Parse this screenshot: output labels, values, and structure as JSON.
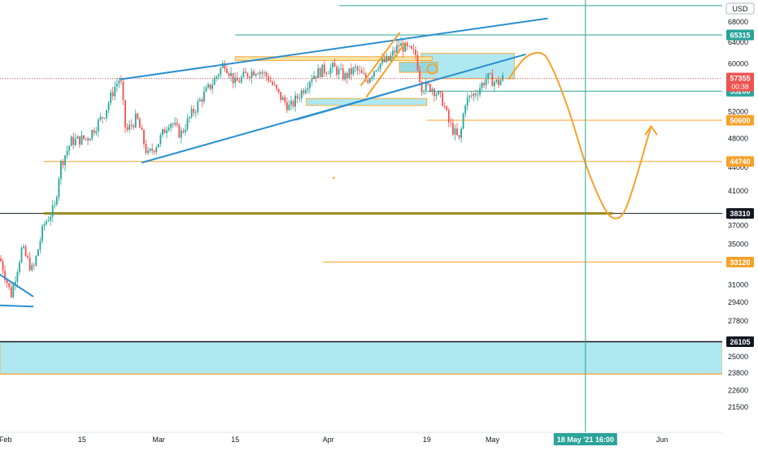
{
  "app": {
    "currency_label": "USD"
  },
  "chart_data": {
    "type": "candlestick",
    "y_scale": "log",
    "ylim": [
      20500,
      72500
    ],
    "y_ticks": [
      68000,
      64000,
      60000,
      56000,
      52000,
      48000,
      44000,
      41000,
      38000,
      37000,
      35000,
      33000,
      31000,
      29400,
      27800,
      25000,
      23800,
      22600,
      21500
    ],
    "x_range": [
      "2021-01-31",
      "2021-06-12"
    ],
    "x_ticks": [
      {
        "label": "Feb",
        "date": "2021-02-01"
      },
      {
        "label": "15",
        "date": "2021-02-15"
      },
      {
        "label": "Mar",
        "date": "2021-03-01"
      },
      {
        "label": "15",
        "date": "2021-03-15"
      },
      {
        "label": "Apr",
        "date": "2021-04-01"
      },
      {
        "label": "19",
        "date": "2021-04-19"
      },
      {
        "label": "May",
        "date": "2021-05-01"
      },
      {
        "label": "Jun",
        "date": "2021-06-01"
      }
    ],
    "crosshair": {
      "date": "2021-05-18",
      "label": "18 May '21   16:00"
    },
    "last_price": {
      "value": 57355,
      "countdown": "00:38"
    },
    "price_labels": [
      {
        "value": 65315,
        "label": "65315",
        "style": "teal"
      },
      {
        "value": 55200,
        "label": "55200",
        "style": "teal"
      },
      {
        "value": 50600,
        "label": "50600",
        "style": "orange"
      },
      {
        "value": 44740,
        "label": "44740",
        "style": "orange"
      },
      {
        "value": 38310,
        "label": "38310",
        "style": "black"
      },
      {
        "value": 33120,
        "label": "33120",
        "style": "orange"
      },
      {
        "value": 26105,
        "label": "26105",
        "style": "black"
      }
    ],
    "h_levels": [
      {
        "value": 71300,
        "x_from": "2021-04-03",
        "color": "#2aa39a",
        "width": 1
      },
      {
        "value": 65315,
        "x_from": "2021-03-15",
        "color": "#2aa39a",
        "width": 1
      },
      {
        "value": 55200,
        "x_from": "2021-04-19",
        "color": "#2aa39a",
        "width": 1
      },
      {
        "value": 50600,
        "x_from": "2021-04-19",
        "color": "#f7a12a",
        "width": 1
      },
      {
        "value": 44740,
        "x_from": "2021-02-08",
        "color": "#f7a12a",
        "width": 1
      },
      {
        "value": 38310,
        "x_from": "2021-01-31",
        "color": "#131722",
        "width": 1
      },
      {
        "value": 38310,
        "x_from": "2021-02-08",
        "x_to": "2021-05-23",
        "color": "#9a8a1e",
        "width": 3
      },
      {
        "value": 33120,
        "x_from": "2021-03-31",
        "color": "#f7a12a",
        "width": 1
      },
      {
        "value": 26105,
        "x_from": "2021-01-31",
        "color": "#131722",
        "width": 1.5
      },
      {
        "value": 23700,
        "x_from": "2021-01-31",
        "color": "#f7a12a",
        "width": 1
      }
    ],
    "zones": [
      {
        "x_from": "2021-01-31",
        "x_to": "2021-06-12",
        "y_top": 26105,
        "y_bottom": 23700,
        "fill": "#a8e6f0",
        "stroke": "#f7a12a"
      },
      {
        "x_from": "2021-04-18",
        "x_to": "2021-05-05",
        "y_top": 61800,
        "y_bottom": 57300,
        "fill": "#a8e6f0",
        "stroke": "#f7a12a"
      },
      {
        "x_from": "2021-03-28",
        "x_to": "2021-04-19",
        "y_top": 54000,
        "y_bottom": 52900,
        "fill": "#a8e6f0",
        "stroke": "#f7a12a"
      },
      {
        "x_from": "2021-03-15",
        "x_to": "2021-04-20",
        "y_top": 61200,
        "y_bottom": 60500,
        "fill": "#f6e3a0",
        "stroke": "#f7a12a"
      },
      {
        "x_from": "2021-04-14",
        "x_to": "2021-04-21",
        "y_top": 60200,
        "y_bottom": 58400,
        "fill": "#8fd6df",
        "stroke": "#f7a12a"
      }
    ],
    "trendlines": [
      {
        "from": [
          "2021-02-22",
          57200
        ],
        "to": [
          "2021-05-11",
          68600
        ],
        "color": "#2b8fd1",
        "width": 2
      },
      {
        "from": [
          "2021-02-26",
          44600
        ],
        "to": [
          "2021-05-07",
          61600
        ],
        "color": "#2b8fd1",
        "width": 2
      },
      {
        "from": [
          "2021-03-26",
          50600
        ],
        "to": [
          "2021-05-07",
          61600
        ],
        "color": "#2b8fd1",
        "width": 1
      },
      {
        "from": [
          "2021-01-31",
          31900
        ],
        "to": [
          "2021-02-06",
          29900
        ],
        "color": "#2b8fd1",
        "width": 2
      },
      {
        "from": [
          "2021-01-31",
          29100
        ],
        "to": [
          "2021-02-06",
          29000
        ],
        "color": "#2b8fd1",
        "width": 2
      },
      {
        "from": [
          "2021-04-07",
          56200
        ],
        "to": [
          "2021-04-14",
          65700
        ],
        "color": "#f7a12a",
        "width": 2
      },
      {
        "from": [
          "2021-04-08",
          54300
        ],
        "to": [
          "2021-04-15",
          63700
        ],
        "color": "#f7a12a",
        "width": 2
      }
    ],
    "projection": {
      "color": "#f7a12a",
      "points": [
        [
          "2021-05-04",
          57300
        ],
        [
          "2021-05-07",
          61000
        ],
        [
          "2021-05-10",
          61800
        ],
        [
          "2021-05-12",
          59000
        ],
        [
          "2021-05-15",
          52000
        ],
        [
          "2021-05-18",
          44500
        ],
        [
          "2021-05-21",
          39500
        ],
        [
          "2021-05-23",
          37800
        ],
        [
          "2021-05-25",
          38400
        ],
        [
          "2021-05-27",
          42000
        ],
        [
          "2021-05-29",
          47000
        ],
        [
          "2021-05-30",
          49700
        ]
      ]
    },
    "circle_marker": {
      "date": "2021-04-20",
      "value": 59000
    },
    "dot_marker": {
      "date": "2021-04-02",
      "value": 42600
    },
    "candles_path": [
      [
        "2021-01-31",
        33500
      ],
      [
        "2021-02-02",
        30000
      ],
      [
        "2021-02-04",
        34500
      ],
      [
        "2021-02-06",
        32200
      ],
      [
        "2021-02-08",
        37000
      ],
      [
        "2021-02-10",
        39000
      ],
      [
        "2021-02-11",
        44200
      ],
      [
        "2021-02-13",
        47500
      ],
      [
        "2021-02-16",
        48000
      ],
      [
        "2021-02-19",
        51500
      ],
      [
        "2021-02-21",
        56000
      ],
      [
        "2021-02-22",
        57500
      ],
      [
        "2021-02-23",
        48800
      ],
      [
        "2021-02-25",
        51000
      ],
      [
        "2021-02-27",
        45500
      ],
      [
        "2021-03-01",
        47500
      ],
      [
        "2021-03-03",
        50600
      ],
      [
        "2021-03-05",
        48500
      ],
      [
        "2021-03-07",
        51500
      ],
      [
        "2021-03-09",
        54300
      ],
      [
        "2021-03-11",
        56800
      ],
      [
        "2021-03-13",
        60200
      ],
      [
        "2021-03-15",
        56500
      ],
      [
        "2021-03-17",
        58000
      ],
      [
        "2021-03-19",
        59000
      ],
      [
        "2021-03-21",
        57500
      ],
      [
        "2021-03-23",
        54500
      ],
      [
        "2021-03-25",
        52500
      ],
      [
        "2021-03-27",
        55000
      ],
      [
        "2021-03-29",
        57800
      ],
      [
        "2021-03-31",
        58800
      ],
      [
        "2021-04-02",
        59200
      ],
      [
        "2021-04-04",
        57600
      ],
      [
        "2021-04-06",
        59000
      ],
      [
        "2021-04-08",
        57000
      ],
      [
        "2021-04-10",
        59800
      ],
      [
        "2021-04-12",
        60500
      ],
      [
        "2021-04-14",
        63500
      ],
      [
        "2021-04-15",
        62800
      ],
      [
        "2021-04-17",
        61500
      ],
      [
        "2021-04-18",
        56000
      ],
      [
        "2021-04-20",
        55800
      ],
      [
        "2021-04-22",
        53500
      ],
      [
        "2021-04-23",
        50300
      ],
      [
        "2021-04-25",
        47500
      ],
      [
        "2021-04-26",
        53500
      ],
      [
        "2021-04-28",
        55000
      ],
      [
        "2021-04-30",
        57500
      ],
      [
        "2021-05-02",
        56500
      ],
      [
        "2021-05-03",
        57500
      ]
    ]
  }
}
